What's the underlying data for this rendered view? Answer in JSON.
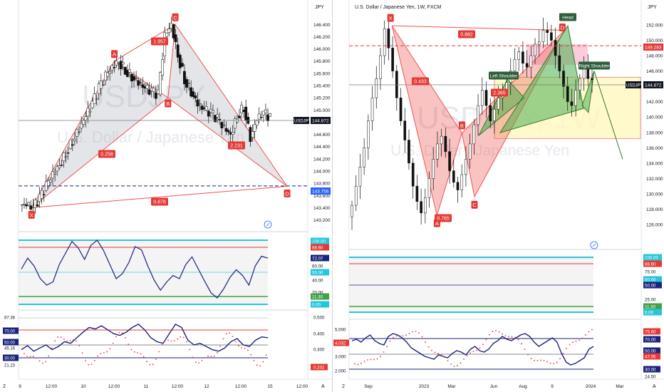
{
  "colors": {
    "candle": "#111111",
    "harmonic_red": "#ef5350",
    "harmonic_green": "#4caf50",
    "harmonic_gray": "#b2b5be",
    "label_bg": "#e53935",
    "head_label": "#2e7d32",
    "blue_line": "#1a237e",
    "cyan": "#26c6da",
    "green_line": "#43a047",
    "red_line": "#e53935",
    "yellow_box": "#fff9c4",
    "pink_box": "#f8bbd0",
    "price_tag": "#131722",
    "blue_tag": "#2962ff"
  },
  "left_panel": {
    "currency": "JPY",
    "watermark_ticker": "USDJPY",
    "watermark_name": "U.S. Dollar / Japanese Yen",
    "price_tag": "144.872",
    "blue_line_tag": "143.756",
    "corner": "A",
    "pattern_labels": {
      "X": "X",
      "A": "A",
      "B": "B",
      "C": "C",
      "D": "D"
    },
    "ratio_labels": [
      "1.957",
      "0.258",
      "2.231",
      "0.878"
    ],
    "price_axis": [
      "146.400",
      "146.200",
      "146.000",
      "145.800",
      "145.600",
      "145.400",
      "145.200",
      "145.000",
      "144.800",
      "144.600",
      "144.400",
      "144.200",
      "144.000",
      "143.800",
      "143.600",
      "143.400",
      "143.200"
    ],
    "time_axis": [
      "9",
      "12:00",
      "10",
      "12:00",
      "11",
      "12:00",
      "12",
      "12:00",
      "15",
      "12:00"
    ],
    "axis_start": "2",
    "osc1_axis": [
      "100.00",
      "88.60",
      "72.07",
      "60.00",
      "50.00",
      "40.00",
      "20.00",
      "11.30",
      "0.00"
    ],
    "osc2_axis": [
      "87.36",
      "70.00",
      "50.00",
      "45.16",
      "30.00",
      "21.23"
    ],
    "osc2_right": [
      "0.500",
      "0.400",
      "0.300",
      "0.202"
    ]
  },
  "right_panel": {
    "title": "U.S. Dollar / Japanese Yen, 1W, FXCM",
    "currency": "JPY",
    "watermark_ticker": "USDJPY, 1W",
    "watermark_name": "U.S. Dollar / Japanese Yen",
    "price_tag": "144.872",
    "red_line_tag": "149.283",
    "corner": "A",
    "pattern_labels": {
      "X": "X",
      "A": "A",
      "B": "B",
      "C": "C",
      "D": "D"
    },
    "ratio_labels": [
      "0.882",
      "0.433",
      "2.365",
      "0.765"
    ],
    "hs_labels": {
      "head": "Head",
      "left": "Left Shoulder",
      "right": "Right Shoulder"
    },
    "price_axis": [
      "152.000",
      "150.000",
      "148.000",
      "146.000",
      "144.000",
      "142.000",
      "140.000",
      "138.000",
      "136.000",
      "134.000",
      "132.000",
      "130.000",
      "128.000",
      "126.000"
    ],
    "time_axis": [
      "Sep",
      "2023",
      "Mar",
      "Jun",
      "Aug",
      "9",
      "2024",
      "Mar"
    ],
    "axis_start": "2",
    "osc1_axis": [
      "100.00",
      "88.60",
      "75.00",
      "50.00",
      "50.00",
      "25.00",
      "11.30",
      "0.00"
    ],
    "osc2_left": [
      "5.000",
      "4.032",
      "3.000",
      "2.000"
    ],
    "osc2_right": [
      "75.60",
      "70.00",
      "50.00",
      "47.05",
      "30.00",
      "24.50"
    ]
  },
  "chart_data": [
    {
      "type": "line",
      "title": "",
      "timeframe": "intraday",
      "xlabel": "",
      "ylabel": "",
      "ylim": [
        143.2,
        146.5
      ],
      "pattern_points": [
        {
          "label": "X",
          "t": 0.03,
          "price": 143.4
        },
        {
          "label": "A",
          "t": 0.37,
          "price": 145.8
        },
        {
          "label": "B",
          "t": 0.59,
          "price": 145.2
        },
        {
          "label": "C",
          "t": 0.62,
          "price": 146.4
        },
        {
          "label": "D",
          "t": 0.99,
          "price": 143.75
        }
      ],
      "close": [
        143.45,
        143.4,
        143.55,
        143.75,
        143.95,
        144.1,
        144.3,
        144.5,
        144.7,
        144.9,
        145.1,
        145.35,
        145.55,
        145.7,
        145.8,
        145.65,
        145.55,
        145.45,
        145.35,
        145.3,
        145.25,
        146.2,
        146.4,
        145.9,
        145.5,
        145.3,
        145.1,
        145.0,
        144.95,
        144.85,
        144.7,
        144.6,
        144.9,
        145.05,
        144.55,
        144.85,
        144.95,
        144.87
      ],
      "blue_level": 143.756
    },
    {
      "type": "line",
      "title": "U.S. Dollar / Japanese Yen, 1W, FXCM",
      "timeframe": "1W",
      "xlabel": "",
      "ylabel": "",
      "ylim": [
        125,
        153
      ],
      "pattern_points": [
        {
          "label": "X",
          "t": 0.16,
          "price": 151.9
        },
        {
          "label": "A",
          "t": 0.34,
          "price": 127.2
        },
        {
          "label": "B",
          "t": 0.44,
          "price": 137.9
        },
        {
          "label": "C",
          "t": 0.49,
          "price": 129.6
        },
        {
          "label": "D",
          "t": 0.85,
          "price": 151.3
        }
      ],
      "close": [
        128.5,
        131,
        133.5,
        136,
        139.5,
        142.5,
        145,
        148,
        151.5,
        149,
        146,
        142.5,
        139.5,
        137,
        134,
        131,
        129,
        127.5,
        129.5,
        132,
        134.5,
        136.5,
        137.5,
        135.5,
        133,
        131.5,
        130.5,
        132.5,
        134.5,
        136.5,
        139,
        141.5,
        143.5,
        141.5,
        139.5,
        141,
        142.5,
        143.5,
        144.5,
        146,
        147.5,
        148.5,
        147,
        146.5,
        148,
        149.5,
        149.8,
        151.3,
        151,
        150,
        148,
        146,
        144,
        142,
        141.5,
        143.5,
        145,
        146.5,
        145,
        144.87
      ],
      "red_level": 149.283,
      "shoulder_levels": {
        "left": 144.9,
        "head": 151.9,
        "right": 146.0
      }
    }
  ]
}
